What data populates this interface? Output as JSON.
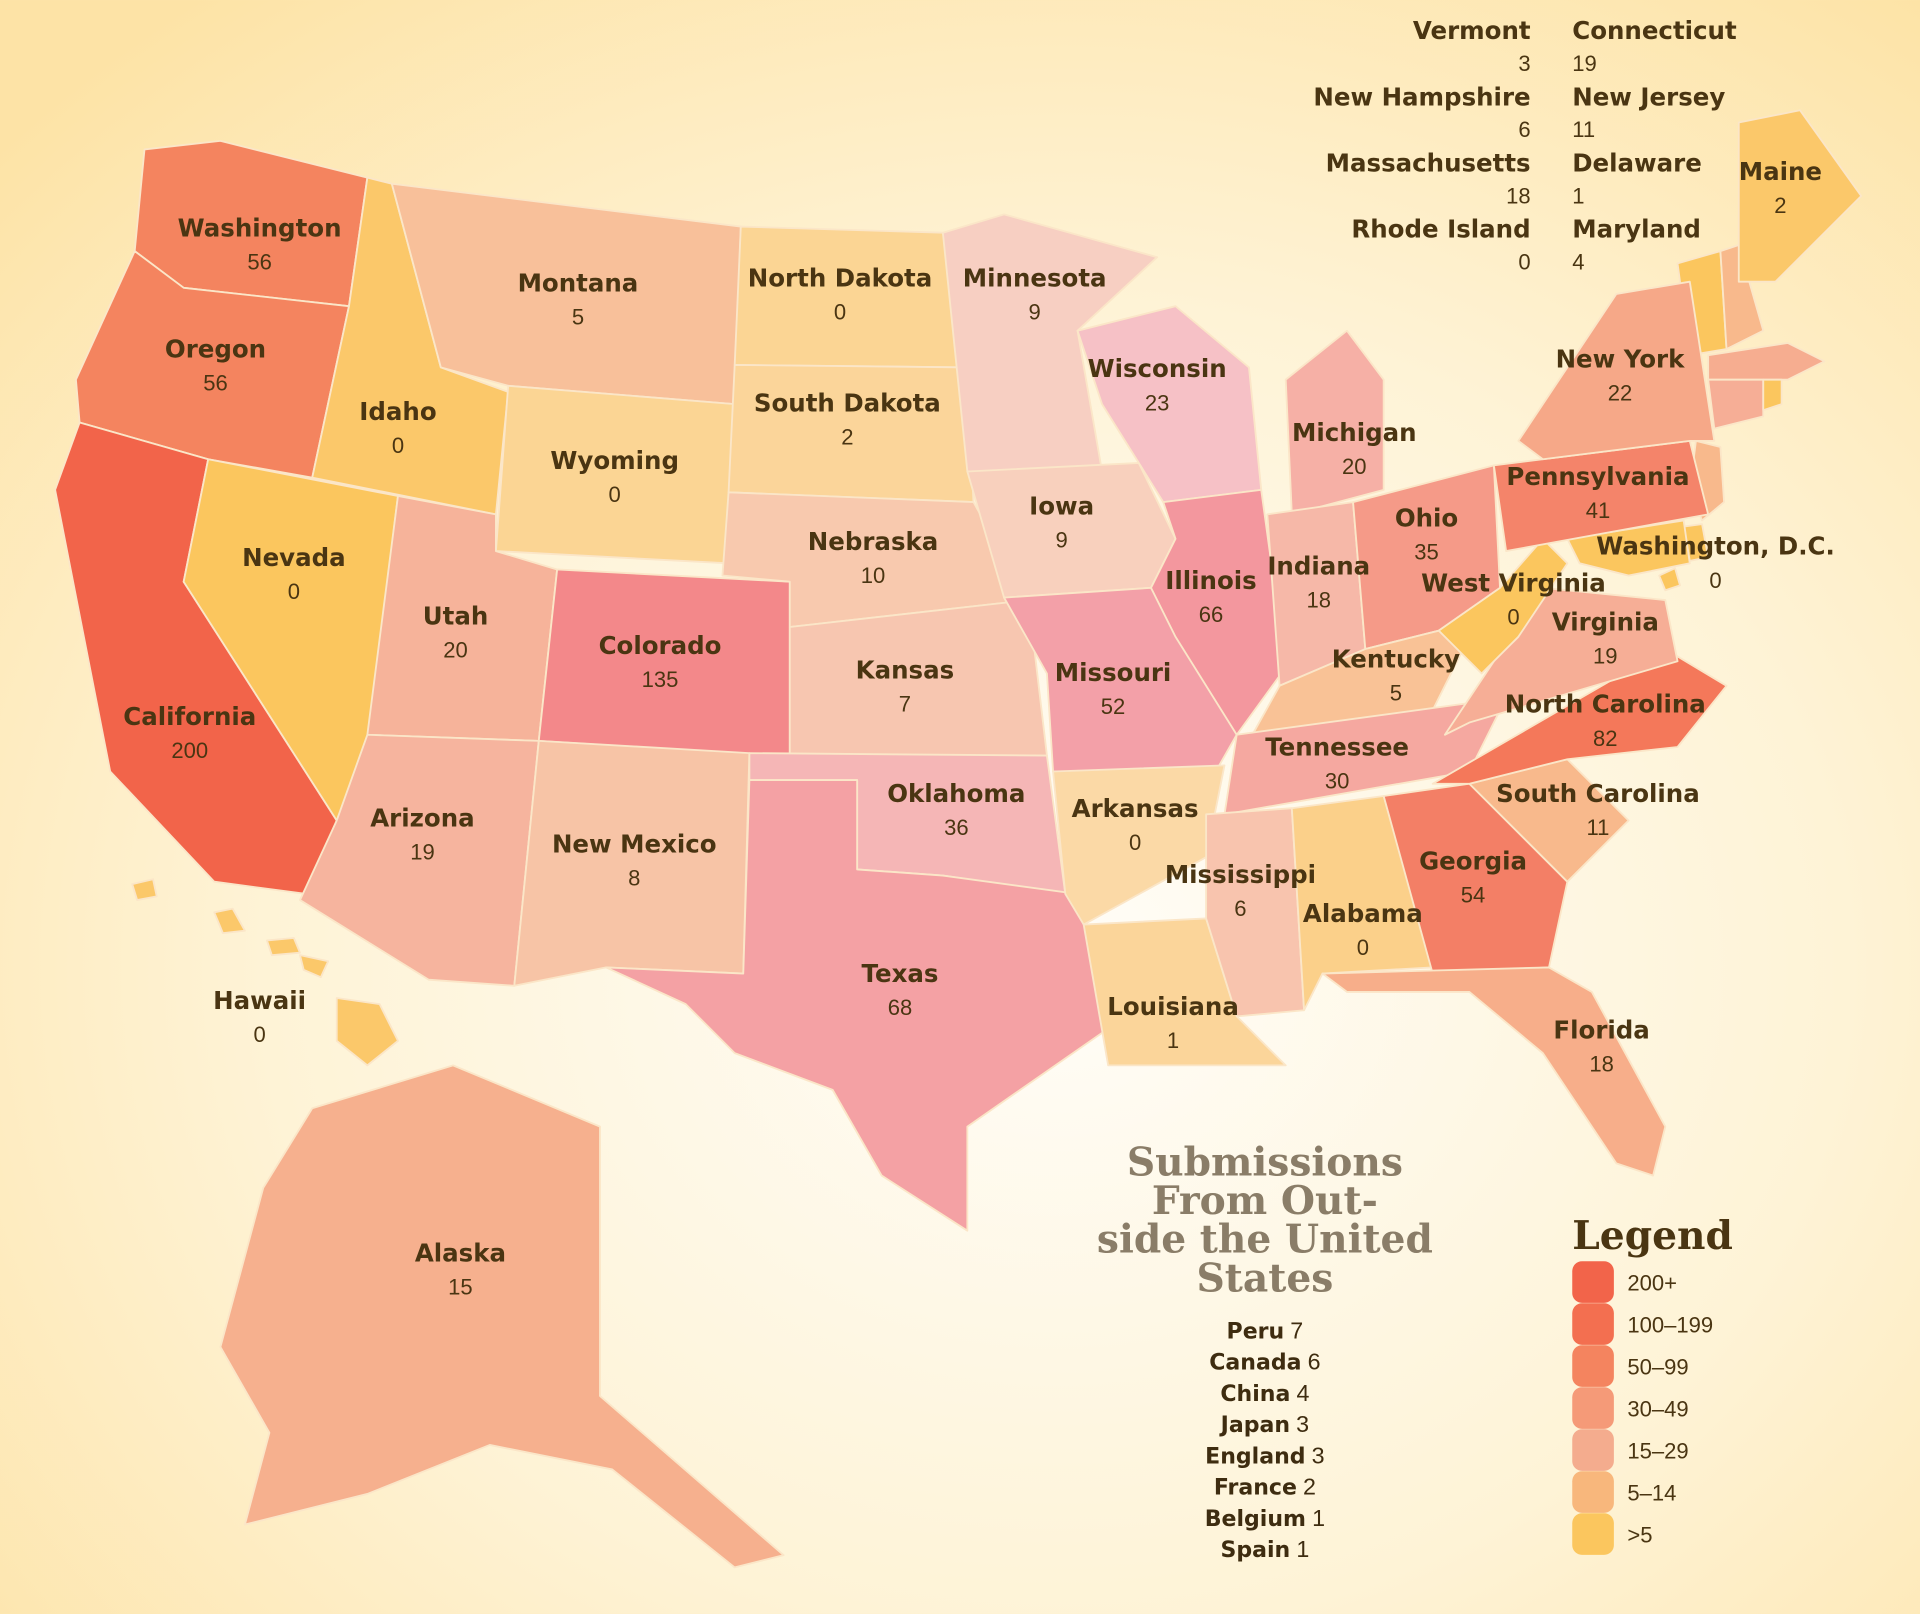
{
  "states": [
    {
      "name": "Washington",
      "value": "56"
    },
    {
      "name": "Oregon",
      "value": "56"
    },
    {
      "name": "California",
      "value": "200"
    },
    {
      "name": "Nevada",
      "value": "0"
    },
    {
      "name": "Idaho",
      "value": "0"
    },
    {
      "name": "Montana",
      "value": "5"
    },
    {
      "name": "Wyoming",
      "value": "0"
    },
    {
      "name": "Utah",
      "value": "20"
    },
    {
      "name": "Colorado",
      "value": "135"
    },
    {
      "name": "Arizona",
      "value": "19"
    },
    {
      "name": "New Mexico",
      "value": "8"
    },
    {
      "name": "North Dakota",
      "value": "0"
    },
    {
      "name": "South Dakota",
      "value": "2"
    },
    {
      "name": "Nebraska",
      "value": "10"
    },
    {
      "name": "Kansas",
      "value": "7"
    },
    {
      "name": "Oklahoma",
      "value": "36"
    },
    {
      "name": "Texas",
      "value": "68"
    },
    {
      "name": "Minnesota",
      "value": "9"
    },
    {
      "name": "Iowa",
      "value": "9"
    },
    {
      "name": "Missouri",
      "value": "52"
    },
    {
      "name": "Arkansas",
      "value": "0"
    },
    {
      "name": "Louisiana",
      "value": "1"
    },
    {
      "name": "Wisconsin",
      "value": "23"
    },
    {
      "name": "Illinois",
      "value": "66"
    },
    {
      "name": "Michigan",
      "value": "20"
    },
    {
      "name": "Indiana",
      "value": "18"
    },
    {
      "name": "Ohio",
      "value": "35"
    },
    {
      "name": "Kentucky",
      "value": "5"
    },
    {
      "name": "Tennessee",
      "value": "30"
    },
    {
      "name": "Mississippi",
      "value": "6"
    },
    {
      "name": "Alabama",
      "value": "0"
    },
    {
      "name": "Georgia",
      "value": "54"
    },
    {
      "name": "Florida",
      "value": "18"
    },
    {
      "name": "South Carolina",
      "value": "11"
    },
    {
      "name": "North Carolina",
      "value": "82"
    },
    {
      "name": "Virginia",
      "value": "19"
    },
    {
      "name": "West Virginia",
      "value": "0"
    },
    {
      "name": "Pennsylvania",
      "value": "41"
    },
    {
      "name": "New York",
      "value": "22"
    },
    {
      "name": "Washington, D.C.",
      "value": "0"
    },
    {
      "name": "Maine",
      "value": "2"
    },
    {
      "name": "Alaska",
      "value": "15"
    },
    {
      "name": "Hawaii",
      "value": "0"
    }
  ],
  "northeast_left": [
    {
      "name": "Vermont",
      "value": "3"
    },
    {
      "name": "New Hampshire",
      "value": "6"
    },
    {
      "name": "Massachusetts",
      "value": "18"
    },
    {
      "name": "Rhode Island",
      "value": "0"
    }
  ],
  "northeast_right": [
    {
      "name": "Connecticut",
      "value": "19"
    },
    {
      "name": "New Jersey",
      "value": "11"
    },
    {
      "name": "Delaware",
      "value": "1"
    },
    {
      "name": "Maryland",
      "value": "4"
    }
  ],
  "outside": {
    "title_lines": [
      "Submissions",
      "From Out-",
      "side the United",
      "States"
    ],
    "countries": [
      {
        "name": "Peru",
        "value": "7"
      },
      {
        "name": "Canada",
        "value": "6"
      },
      {
        "name": "China",
        "value": "4"
      },
      {
        "name": "Japan",
        "value": "3"
      },
      {
        "name": "England",
        "value": "3"
      },
      {
        "name": "France",
        "value": "2"
      },
      {
        "name": "Belgium",
        "value": "1"
      },
      {
        "name": "Spain",
        "value": "1"
      }
    ]
  },
  "legend": {
    "title": "Legend",
    "items": [
      {
        "label": "200+",
        "color": "#f2644a"
      },
      {
        "label": "100–199",
        "color": "#f36f50"
      },
      {
        "label": "50–99",
        "color": "#f4845f"
      },
      {
        "label": "30–49",
        "color": "#f59a78"
      },
      {
        "label": "15–29",
        "color": "#f4ac8e"
      },
      {
        "label": "5–14",
        "color": "#f8b77c"
      },
      {
        "label": ">5",
        "color": "#fbc65e"
      }
    ]
  }
}
